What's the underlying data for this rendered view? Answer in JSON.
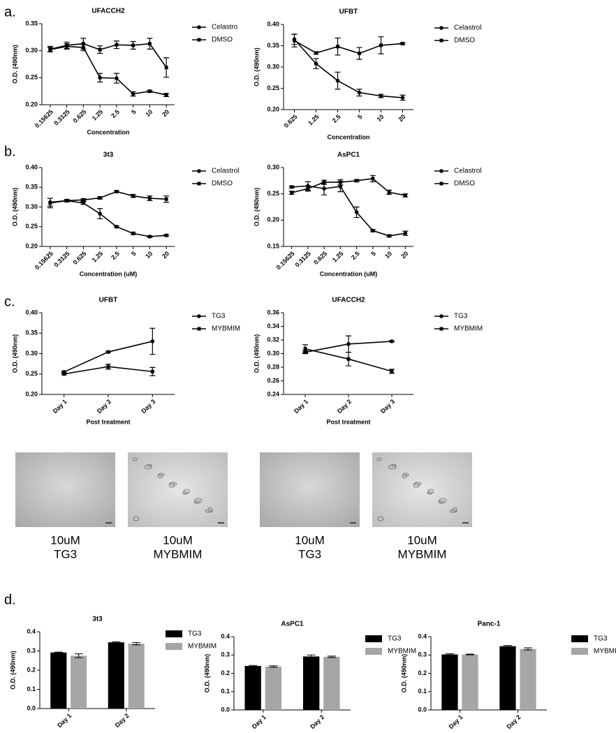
{
  "panels": [
    "a.",
    "b.",
    "c.",
    "d."
  ],
  "chart_data": [
    {
      "type": "line",
      "title": "UFACCH2",
      "xlabel": "Concentration",
      "ylabel": "O.D. (490nm)",
      "categories": [
        "0.15625",
        "0.3125",
        "0.625",
        "1.25",
        "2.5",
        "5",
        "10",
        "20"
      ],
      "ylim": [
        0.2,
        0.35
      ],
      "yticks": [
        {
          "value": 0.2,
          "label": "0.20"
        },
        0.25,
        {
          "value": 0.3,
          "label": "0.30"
        },
        0.35
      ],
      "series": [
        {
          "name": "Celastro",
          "marker": "circle",
          "color": "#000000",
          "values": [
            0.302,
            0.308,
            0.306,
            0.25,
            0.249,
            0.22,
            0.225,
            0.218
          ],
          "errors": [
            0.004,
            0.005,
            0.006,
            0.008,
            0.009,
            0.004,
            0.002,
            0.003
          ]
        },
        {
          "name": "DMSO",
          "marker": "square",
          "color": "#000000",
          "values": [
            0.303,
            0.31,
            0.313,
            0.302,
            0.311,
            0.31,
            0.313,
            0.269
          ],
          "errors": [
            0.005,
            0.006,
            0.01,
            0.007,
            0.007,
            0.007,
            0.01,
            0.018
          ]
        }
      ]
    },
    {
      "type": "line",
      "title": "UFBT",
      "xlabel": "Concentration",
      "ylabel": "O.D. (490nm)",
      "categories": [
        "0.625",
        "1.25",
        "2.5",
        "5",
        "10",
        "20"
      ],
      "ylim": [
        0.2,
        0.4
      ],
      "yticks": [
        {
          "value": 0.2,
          "label": "0.20"
        },
        0.25,
        {
          "value": 0.3,
          "label": "0.30"
        },
        0.35,
        {
          "value": 0.4,
          "label": "0.40"
        }
      ],
      "series": [
        {
          "name": "Celastrol",
          "marker": "circle",
          "color": "#000000",
          "values": [
            0.365,
            0.308,
            0.268,
            0.24,
            0.232,
            0.228
          ],
          "errors": [
            0.012,
            0.012,
            0.02,
            0.008,
            0.004,
            0.006
          ]
        },
        {
          "name": "DMSO",
          "marker": "square",
          "color": "#000000",
          "values": [
            0.362,
            0.333,
            0.348,
            0.332,
            0.351,
            0.355
          ],
          "errors": [
            0.015,
            0.003,
            0.02,
            0.014,
            0.02,
            0.002
          ]
        }
      ]
    },
    {
      "type": "line",
      "title": "3t3",
      "xlabel": "Concentration (uM)",
      "ylabel": "O.D. (490nm)",
      "categories": [
        "0.15625",
        "0.3125",
        "0.625",
        "1.25",
        "2.5",
        "5",
        "10",
        "20"
      ],
      "ylim": [
        0.2,
        0.4
      ],
      "yticks": [
        {
          "value": 0.2,
          "label": "0.20"
        },
        0.25,
        {
          "value": 0.3,
          "label": "0.30"
        },
        0.35,
        {
          "value": 0.4,
          "label": "0.40"
        }
      ],
      "series": [
        {
          "name": "Celastrol",
          "marker": "circle",
          "color": "#000000",
          "values": [
            0.312,
            0.316,
            0.31,
            0.283,
            0.25,
            0.233,
            0.225,
            0.228
          ],
          "errors": [
            0.01,
            0.003,
            0.003,
            0.013,
            0.002,
            0.003,
            0.002,
            0.002
          ]
        },
        {
          "name": "DMSO",
          "marker": "square",
          "color": "#000000",
          "values": [
            0.31,
            0.316,
            0.318,
            0.323,
            0.339,
            0.328,
            0.322,
            0.32
          ],
          "errors": [
            0.012,
            0.003,
            0.003,
            0.003,
            0.002,
            0.004,
            0.006,
            0.008
          ]
        }
      ]
    },
    {
      "type": "line",
      "title": "AsPC1",
      "xlabel": "Concentration (uM)",
      "ylabel": "O.D. (490nm)",
      "categories": [
        "0.15625",
        "0.3125",
        "0.625",
        "1.25",
        "2.5",
        "5",
        "10",
        "20"
      ],
      "ylim": [
        0.15,
        0.3
      ],
      "yticks": [
        0.15,
        {
          "value": 0.2,
          "label": "0.20"
        },
        0.25,
        {
          "value": 0.3,
          "label": "0.30"
        }
      ],
      "series": [
        {
          "name": "Celastrol",
          "marker": "circle",
          "color": "#000000",
          "values": [
            0.263,
            0.265,
            0.26,
            0.264,
            0.215,
            0.18,
            0.17,
            0.175
          ],
          "errors": [
            0.002,
            0.008,
            0.012,
            0.01,
            0.01,
            0.002,
            0.002,
            0.004
          ]
        },
        {
          "name": "DMSO",
          "marker": "square",
          "color": "#000000",
          "values": [
            0.252,
            0.26,
            0.272,
            0.272,
            0.275,
            0.279,
            0.253,
            0.247
          ],
          "errors": [
            0.003,
            0.005,
            0.004,
            0.005,
            0.002,
            0.006,
            0.004,
            0.003
          ]
        }
      ]
    },
    {
      "type": "line",
      "title": "UFBT",
      "xlabel": "Post treatment",
      "ylabel": "O.D. (490nm)",
      "categories": [
        "Day 1",
        "Day 2",
        "Day 3"
      ],
      "ylim": [
        0.2,
        0.4
      ],
      "yticks": [
        {
          "value": 0.2,
          "label": "0.20"
        },
        0.25,
        {
          "value": 0.3,
          "label": "0.30"
        },
        0.35,
        {
          "value": 0.4,
          "label": "0.40"
        }
      ],
      "series": [
        {
          "name": "TG3",
          "marker": "circle",
          "color": "#000000",
          "values": [
            0.255,
            0.304,
            0.33
          ],
          "errors": [
            0.002,
            0.002,
            0.032
          ]
        },
        {
          "name": "MYBMIM",
          "marker": "square",
          "color": "#000000",
          "values": [
            0.25,
            0.268,
            0.256
          ],
          "errors": [
            0.002,
            0.006,
            0.01
          ]
        }
      ]
    },
    {
      "type": "line",
      "title": "UFACCH2",
      "xlabel": "Post treatment",
      "ylabel": "O.D. (490nm)",
      "categories": [
        "Day 1",
        "Day 2",
        "Day 3"
      ],
      "ylim": [
        0.24,
        0.36
      ],
      "yticks": [
        0.24,
        0.26,
        0.28,
        {
          "value": 0.3,
          "label": "0.30"
        },
        0.32,
        0.34,
        0.36
      ],
      "series": [
        {
          "name": "TG3",
          "marker": "circle",
          "color": "#000000",
          "values": [
            0.302,
            0.314,
            0.318
          ],
          "errors": [
            0.002,
            0.012,
            0.001
          ]
        },
        {
          "name": "MYBMIM",
          "marker": "square",
          "color": "#000000",
          "values": [
            0.307,
            0.292,
            0.274
          ],
          "errors": [
            0.006,
            0.01,
            0.003
          ]
        }
      ]
    },
    {
      "type": "bar",
      "title": "3t3",
      "ylabel": "O.D. (490nm)",
      "categories": [
        "Day 1",
        "Day 2"
      ],
      "ylim": [
        0,
        0.4
      ],
      "yticks": [
        {
          "value": 0,
          "label": "0.0"
        },
        0.1,
        0.2,
        0.3,
        0.4
      ],
      "series": [
        {
          "name": "TG3",
          "color": "#000000",
          "values": [
            0.292,
            0.345
          ],
          "errors": [
            0.002,
            0.003
          ]
        },
        {
          "name": "MYBMIM",
          "color": "#a6a6a6",
          "values": [
            0.275,
            0.338
          ],
          "errors": [
            0.01,
            0.006
          ]
        }
      ]
    },
    {
      "type": "bar",
      "title": "AsPC1",
      "ylabel": "O.D. (490nm)",
      "categories": [
        "Day 1",
        "Day 2"
      ],
      "ylim": [
        0,
        0.4
      ],
      "yticks": [
        {
          "value": 0,
          "label": "0.0"
        },
        0.1,
        0.2,
        0.3,
        0.4
      ],
      "series": [
        {
          "name": "TG3",
          "color": "#000000",
          "values": [
            0.24,
            0.292
          ],
          "errors": [
            0.003,
            0.008
          ]
        },
        {
          "name": "MYBMIM",
          "color": "#a6a6a6",
          "values": [
            0.237,
            0.29
          ],
          "errors": [
            0.004,
            0.004
          ]
        }
      ]
    },
    {
      "type": "bar",
      "title": "Panc-1",
      "ylabel": "O.D. (490nm)",
      "categories": [
        "Day 1",
        "Day 2"
      ],
      "ylim": [
        0,
        0.4
      ],
      "yticks": [
        {
          "value": 0,
          "label": "0.0"
        },
        0.1,
        0.2,
        0.3,
        0.4
      ],
      "series": [
        {
          "name": "TG3",
          "color": "#000000",
          "values": [
            0.303,
            0.348
          ],
          "errors": [
            0.004,
            0.004
          ]
        },
        {
          "name": "MYBMIM",
          "color": "#a6a6a6",
          "values": [
            0.303,
            0.333
          ],
          "errors": [
            0.002,
            0.006
          ]
        }
      ]
    }
  ],
  "images": [
    {
      "caption": [
        "10uM",
        "TG3"
      ]
    },
    {
      "caption": [
        "10uM",
        "MYBMIM"
      ]
    },
    {
      "caption": [
        "10uM",
        "TG3"
      ]
    },
    {
      "caption": [
        "10uM",
        "MYBMIM"
      ]
    }
  ]
}
